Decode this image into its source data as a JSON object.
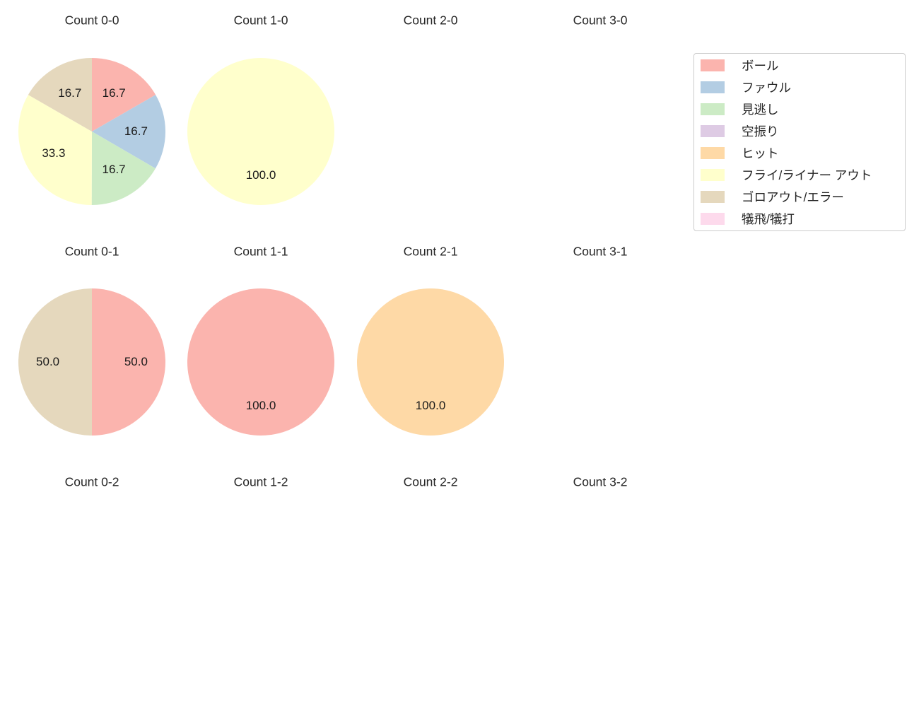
{
  "figure": {
    "background": "#ffffff",
    "text_color": "#262626"
  },
  "legend": {
    "position": "upper-right",
    "border_color": "#cccccc",
    "items": [
      {
        "label": "ボール",
        "color": "#fbb4ae"
      },
      {
        "label": "ファウル",
        "color": "#b3cde3"
      },
      {
        "label": "見逃し",
        "color": "#ccebc5"
      },
      {
        "label": "空振り",
        "color": "#decbe4"
      },
      {
        "label": "ヒット",
        "color": "#fed9a6"
      },
      {
        "label": "フライ/ライナー アウト",
        "color": "#ffffcc"
      },
      {
        "label": "ゴロアウト/エラー",
        "color": "#e5d8bd"
      },
      {
        "label": "犠飛/犠打",
        "color": "#fddaec"
      }
    ]
  },
  "chart_data": [
    {
      "type": "pie",
      "title": "Count 0-0",
      "start_angle": 90,
      "direction": "clockwise",
      "slices": [
        {
          "label": "ボール",
          "value": 16.7,
          "pct": "16.7",
          "color": "#fbb4ae"
        },
        {
          "label": "ファウル",
          "value": 16.7,
          "pct": "16.7",
          "color": "#b3cde3"
        },
        {
          "label": "見逃し",
          "value": 16.7,
          "pct": "16.7",
          "color": "#ccebc5"
        },
        {
          "label": "フライ/ライナー アウト",
          "value": 33.3,
          "pct": "33.3",
          "color": "#ffffcc"
        },
        {
          "label": "ゴロアウト/エラー",
          "value": 16.7,
          "pct": "16.7",
          "color": "#e5d8bd"
        }
      ]
    },
    {
      "type": "pie",
      "title": "Count 1-0",
      "start_angle": 90,
      "direction": "clockwise",
      "slices": [
        {
          "label": "フライ/ライナー アウト",
          "value": 100.0,
          "pct": "100.0",
          "color": "#ffffcc"
        }
      ]
    },
    {
      "type": "pie",
      "title": "Count 2-0",
      "slices": []
    },
    {
      "type": "pie",
      "title": "Count 3-0",
      "slices": []
    },
    {
      "type": "pie",
      "title": "Count 0-1",
      "start_angle": 90,
      "direction": "clockwise",
      "slices": [
        {
          "label": "ボール",
          "value": 50.0,
          "pct": "50.0",
          "color": "#fbb4ae"
        },
        {
          "label": "ゴロアウト/エラー",
          "value": 50.0,
          "pct": "50.0",
          "color": "#e5d8bd"
        }
      ]
    },
    {
      "type": "pie",
      "title": "Count 1-1",
      "start_angle": 90,
      "direction": "clockwise",
      "slices": [
        {
          "label": "ボール",
          "value": 100.0,
          "pct": "100.0",
          "color": "#fbb4ae"
        }
      ]
    },
    {
      "type": "pie",
      "title": "Count 2-1",
      "start_angle": 90,
      "direction": "clockwise",
      "slices": [
        {
          "label": "ヒット",
          "value": 100.0,
          "pct": "100.0",
          "color": "#fed9a6"
        }
      ]
    },
    {
      "type": "pie",
      "title": "Count 3-1",
      "slices": []
    },
    {
      "type": "pie",
      "title": "Count 0-2",
      "slices": []
    },
    {
      "type": "pie",
      "title": "Count 1-2",
      "slices": []
    },
    {
      "type": "pie",
      "title": "Count 2-2",
      "slices": []
    },
    {
      "type": "pie",
      "title": "Count 3-2",
      "slices": []
    }
  ]
}
